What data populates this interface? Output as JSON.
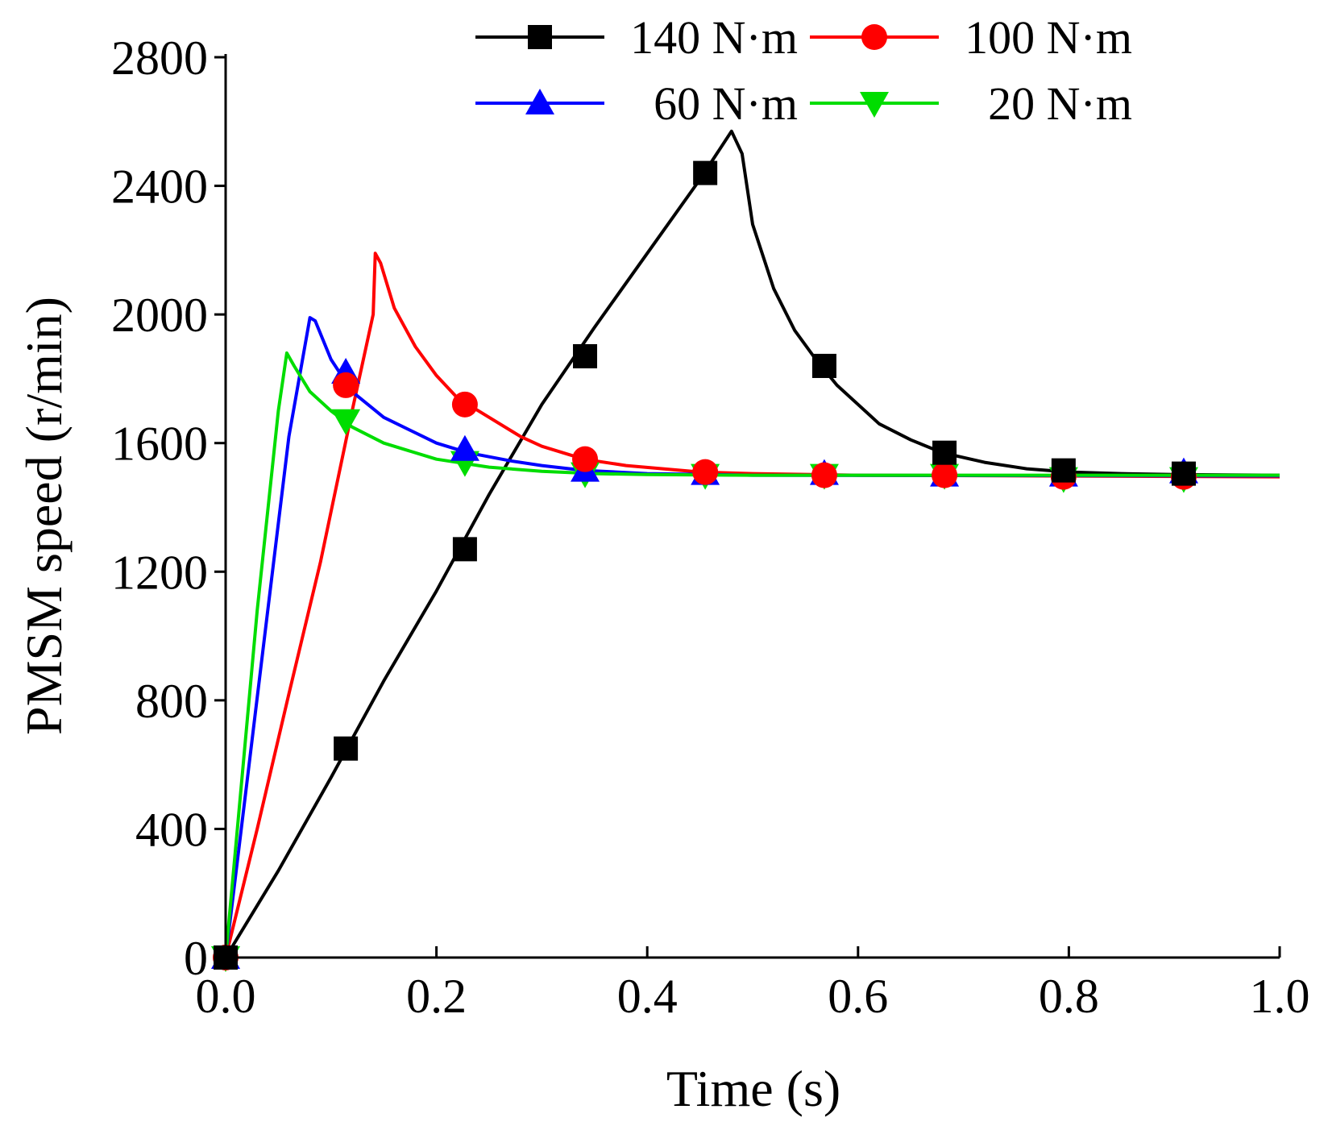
{
  "chart_data": {
    "type": "line",
    "title": "",
    "xlabel": "Time (s)",
    "ylabel": "PMSM speed (r/min)",
    "xlim": [
      0.0,
      1.0
    ],
    "ylim": [
      0,
      2800
    ],
    "x_ticks": [
      0.0,
      0.2,
      0.4,
      0.6,
      0.8,
      1.0
    ],
    "x_tick_labels": [
      "0.0",
      "0.2",
      "0.4",
      "0.6",
      "0.8",
      "1.0"
    ],
    "y_ticks": [
      0,
      400,
      800,
      1200,
      1600,
      2000,
      2400,
      2800
    ],
    "y_tick_labels": [
      "0",
      "400",
      "800",
      "1200",
      "1600",
      "2000",
      "2400",
      "2800"
    ],
    "grid": false,
    "legend": {
      "placement": "top",
      "columns": 2
    },
    "series": [
      {
        "name": "140 N·m",
        "color": "#000000",
        "marker": "square",
        "curve": [
          [
            0.0,
            0
          ],
          [
            0.05,
            270
          ],
          [
            0.1,
            560
          ],
          [
            0.15,
            860
          ],
          [
            0.2,
            1140
          ],
          [
            0.25,
            1440
          ],
          [
            0.3,
            1720
          ],
          [
            0.35,
            1960
          ],
          [
            0.4,
            2190
          ],
          [
            0.45,
            2420
          ],
          [
            0.48,
            2570
          ],
          [
            0.49,
            2500
          ],
          [
            0.5,
            2280
          ],
          [
            0.52,
            2080
          ],
          [
            0.54,
            1950
          ],
          [
            0.56,
            1860
          ],
          [
            0.58,
            1780
          ],
          [
            0.6,
            1720
          ],
          [
            0.62,
            1660
          ],
          [
            0.65,
            1610
          ],
          [
            0.68,
            1570
          ],
          [
            0.72,
            1540
          ],
          [
            0.76,
            1520
          ],
          [
            0.8,
            1510
          ],
          [
            0.85,
            1505
          ],
          [
            0.9,
            1502
          ],
          [
            1.0,
            1500
          ]
        ],
        "markers": [
          [
            0.0,
            0
          ],
          [
            0.114,
            650
          ],
          [
            0.227,
            1270
          ],
          [
            0.341,
            1870
          ],
          [
            0.455,
            2440
          ],
          [
            0.568,
            1840
          ],
          [
            0.682,
            1570
          ],
          [
            0.795,
            1515
          ],
          [
            0.909,
            1505
          ]
        ]
      },
      {
        "name": "100 N·m",
        "color": "#ff0000",
        "marker": "circle",
        "curve": [
          [
            0.0,
            0
          ],
          [
            0.03,
            400
          ],
          [
            0.06,
            820
          ],
          [
            0.09,
            1230
          ],
          [
            0.12,
            1700
          ],
          [
            0.14,
            2000
          ],
          [
            0.142,
            2190
          ],
          [
            0.147,
            2160
          ],
          [
            0.16,
            2020
          ],
          [
            0.18,
            1900
          ],
          [
            0.2,
            1810
          ],
          [
            0.22,
            1740
          ],
          [
            0.25,
            1680
          ],
          [
            0.28,
            1620
          ],
          [
            0.3,
            1590
          ],
          [
            0.34,
            1550
          ],
          [
            0.38,
            1530
          ],
          [
            0.45,
            1510
          ],
          [
            0.5,
            1505
          ],
          [
            0.6,
            1500
          ],
          [
            1.0,
            1495
          ]
        ],
        "markers": [
          [
            0.0,
            0
          ],
          [
            0.114,
            1780
          ],
          [
            0.227,
            1720
          ],
          [
            0.341,
            1550
          ],
          [
            0.455,
            1510
          ],
          [
            0.568,
            1500
          ],
          [
            0.682,
            1500
          ],
          [
            0.795,
            1495
          ],
          [
            0.909,
            1495
          ]
        ]
      },
      {
        "name": "60 N·m",
        "color": "#0000ff",
        "marker": "triangle-up",
        "curve": [
          [
            0.0,
            0
          ],
          [
            0.02,
            540
          ],
          [
            0.04,
            1080
          ],
          [
            0.06,
            1620
          ],
          [
            0.08,
            1990
          ],
          [
            0.085,
            1980
          ],
          [
            0.1,
            1860
          ],
          [
            0.12,
            1760
          ],
          [
            0.15,
            1680
          ],
          [
            0.2,
            1600
          ],
          [
            0.23,
            1570
          ],
          [
            0.27,
            1545
          ],
          [
            0.3,
            1530
          ],
          [
            0.34,
            1515
          ],
          [
            0.4,
            1505
          ],
          [
            0.5,
            1500
          ],
          [
            1.0,
            1498
          ]
        ],
        "markers": [
          [
            0.0,
            0
          ],
          [
            0.114,
            1820
          ],
          [
            0.227,
            1580
          ],
          [
            0.341,
            1515
          ],
          [
            0.455,
            1505
          ],
          [
            0.568,
            1505
          ],
          [
            0.682,
            1500
          ],
          [
            0.795,
            1500
          ],
          [
            0.909,
            1510
          ]
        ]
      },
      {
        "name": "20 N·m",
        "color": "#00dd00",
        "marker": "triangle-down",
        "curve": [
          [
            0.0,
            0
          ],
          [
            0.01,
            360
          ],
          [
            0.03,
            1080
          ],
          [
            0.05,
            1700
          ],
          [
            0.058,
            1880
          ],
          [
            0.065,
            1840
          ],
          [
            0.08,
            1760
          ],
          [
            0.1,
            1700
          ],
          [
            0.12,
            1650
          ],
          [
            0.15,
            1600
          ],
          [
            0.2,
            1550
          ],
          [
            0.25,
            1525
          ],
          [
            0.3,
            1512
          ],
          [
            0.35,
            1505
          ],
          [
            0.4,
            1502
          ],
          [
            0.5,
            1500
          ],
          [
            1.0,
            1500
          ]
        ],
        "markers": [
          [
            0.0,
            0
          ],
          [
            0.114,
            1670
          ],
          [
            0.227,
            1540
          ],
          [
            0.341,
            1505
          ],
          [
            0.455,
            1500
          ],
          [
            0.568,
            1500
          ],
          [
            0.682,
            1500
          ],
          [
            0.795,
            1490
          ],
          [
            0.909,
            1490
          ]
        ]
      }
    ]
  }
}
